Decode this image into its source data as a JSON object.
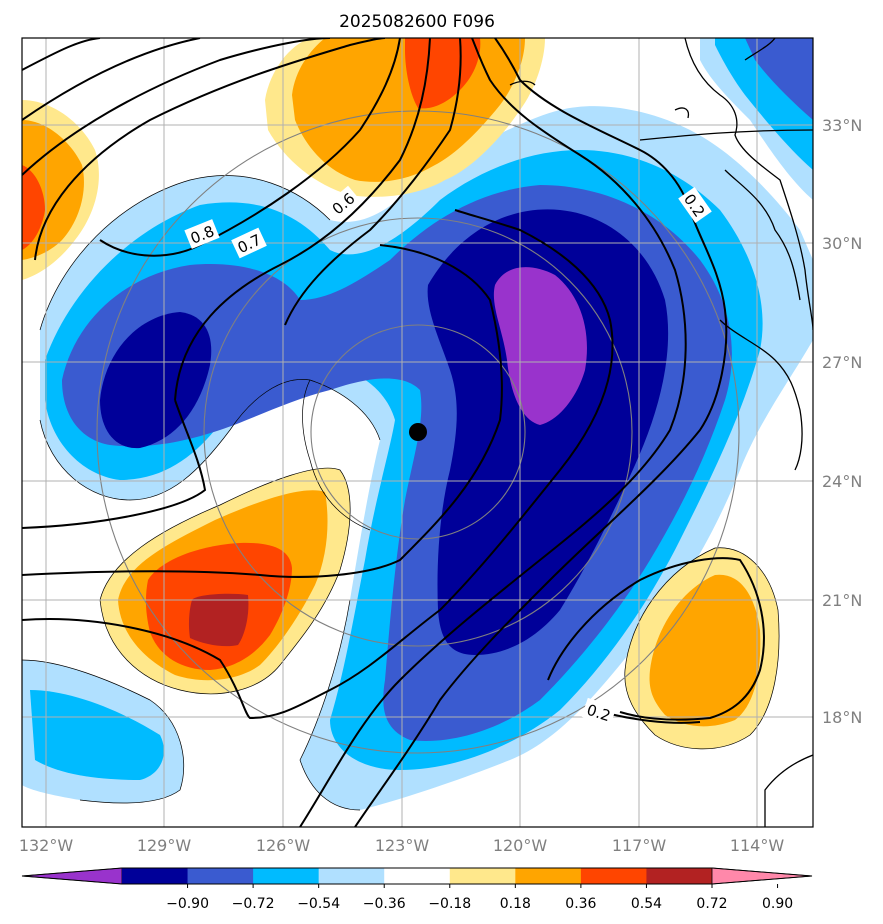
{
  "title": "2025082600 F096",
  "lon_ticks": [
    "132°W",
    "129°W",
    "126°W",
    "123°W",
    "120°W",
    "117°W",
    "114°W"
  ],
  "lat_ticks": [
    "33°N",
    "30°N",
    "27°N",
    "24°N",
    "21°N",
    "18°N"
  ],
  "colorbar": {
    "ticks": [
      "−0.90",
      "−0.72",
      "−0.54",
      "−0.36",
      "−0.18",
      "0.18",
      "0.36",
      "0.54",
      "0.72",
      "0.90"
    ],
    "colors": [
      "#9933cc",
      "#000099",
      "#3a5bd0",
      "#00bbff",
      "#b0e0ff",
      "#ffffff",
      "#ffe88c",
      "#ffa500",
      "#ff4500",
      "#b22222",
      "#ff88aa"
    ]
  },
  "contour_labels": [
    "0.8",
    "0.7",
    "0.6",
    "0.2",
    "0.2"
  ],
  "center_marker": "storm-center"
}
